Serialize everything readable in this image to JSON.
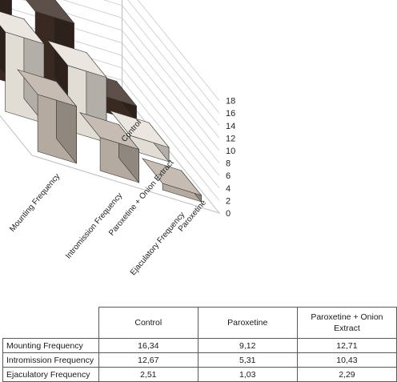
{
  "chart_data": {
    "type": "bar",
    "variant": "3d-column",
    "categories": [
      "Mounting Frequency",
      "Intromission Frequency",
      "Ejaculatory Frequency"
    ],
    "series": [
      {
        "name": "Control",
        "values": [
          16.34,
          12.67,
          2.51
        ]
      },
      {
        "name": "Paroxetine",
        "values": [
          9.12,
          5.31,
          1.03
        ]
      },
      {
        "name": "Paroxetine + Onion Extract",
        "values": [
          12.71,
          10.43,
          2.29
        ]
      }
    ],
    "ylim": [
      0,
      18
    ],
    "yticks": [
      "0",
      "2",
      "4",
      "6",
      "8",
      "10",
      "12",
      "14",
      "16",
      "18"
    ],
    "grid": true,
    "legend": "none",
    "colors": {
      "row_front": "#b9ada2",
      "row_middle": "#e6e0d8",
      "row_back": "#3a2a22"
    }
  },
  "table": {
    "headers": [
      "Control",
      "Paroxetine",
      "Paroxetine + Onion Extract"
    ],
    "rows": [
      {
        "label": "Mounting Frequency",
        "values": [
          "16,34",
          "9,12",
          "12,71"
        ]
      },
      {
        "label": "Intromission Frequency",
        "values": [
          "12,67",
          "5,31",
          "10,43"
        ]
      },
      {
        "label": "Ejaculatory Frequency",
        "values": [
          "2,51",
          "1,03",
          "2,29"
        ]
      }
    ]
  }
}
